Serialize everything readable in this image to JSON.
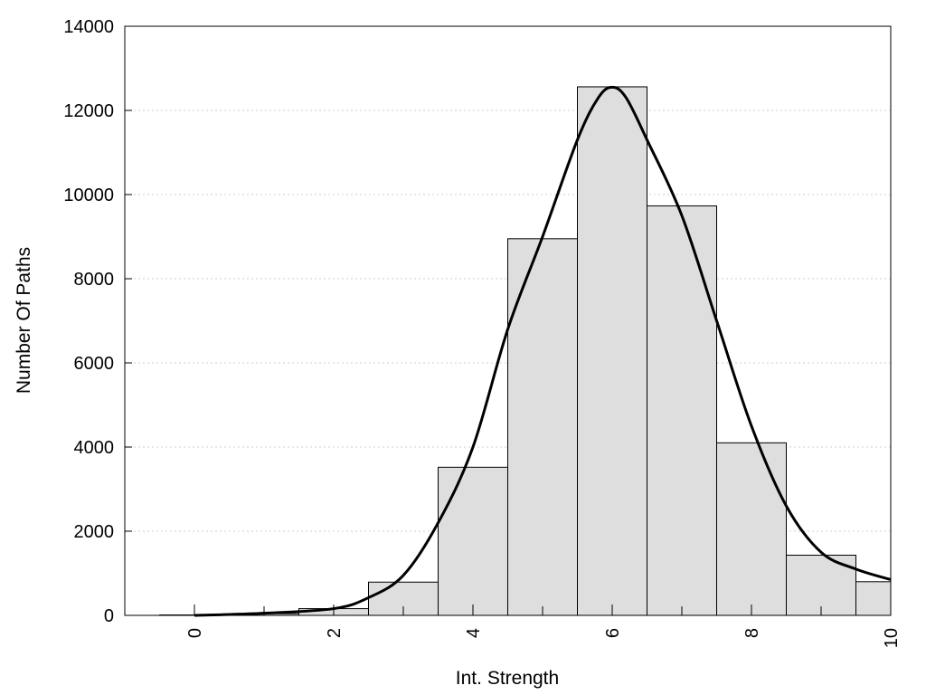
{
  "chart_data": {
    "type": "bar",
    "xlabel": "Int. Strength",
    "ylabel": "Number Of Paths",
    "xlim": [
      -1,
      10
    ],
    "ylim": [
      0,
      14000
    ],
    "x_ticks": [
      0,
      2,
      4,
      6,
      8,
      10
    ],
    "y_ticks": [
      0,
      2000,
      4000,
      6000,
      8000,
      10000,
      12000,
      14000
    ],
    "grid": true,
    "bar_color": "#dedede",
    "bars": [
      {
        "x": 0,
        "value": 10
      },
      {
        "x": 1,
        "value": 40
      },
      {
        "x": 2,
        "value": 160
      },
      {
        "x": 3,
        "value": 790
      },
      {
        "x": 4,
        "value": 3520
      },
      {
        "x": 5,
        "value": 8950
      },
      {
        "x": 6,
        "value": 12560
      },
      {
        "x": 7,
        "value": 9730
      },
      {
        "x": 8,
        "value": 4100
      },
      {
        "x": 9,
        "value": 1430
      },
      {
        "x": 10,
        "value": 800
      }
    ],
    "curve": {
      "x": [
        0,
        1,
        2,
        2.5,
        3,
        3.5,
        4,
        4.5,
        5,
        5.5,
        5.8,
        6,
        6.2,
        6.5,
        7,
        7.5,
        8,
        8.5,
        9,
        9.5,
        10
      ],
      "y": [
        0,
        50,
        160,
        420,
        950,
        2200,
        4000,
        6800,
        9000,
        11300,
        12300,
        12550,
        12300,
        11300,
        9500,
        7000,
        4500,
        2600,
        1500,
        1100,
        850
      ]
    }
  }
}
